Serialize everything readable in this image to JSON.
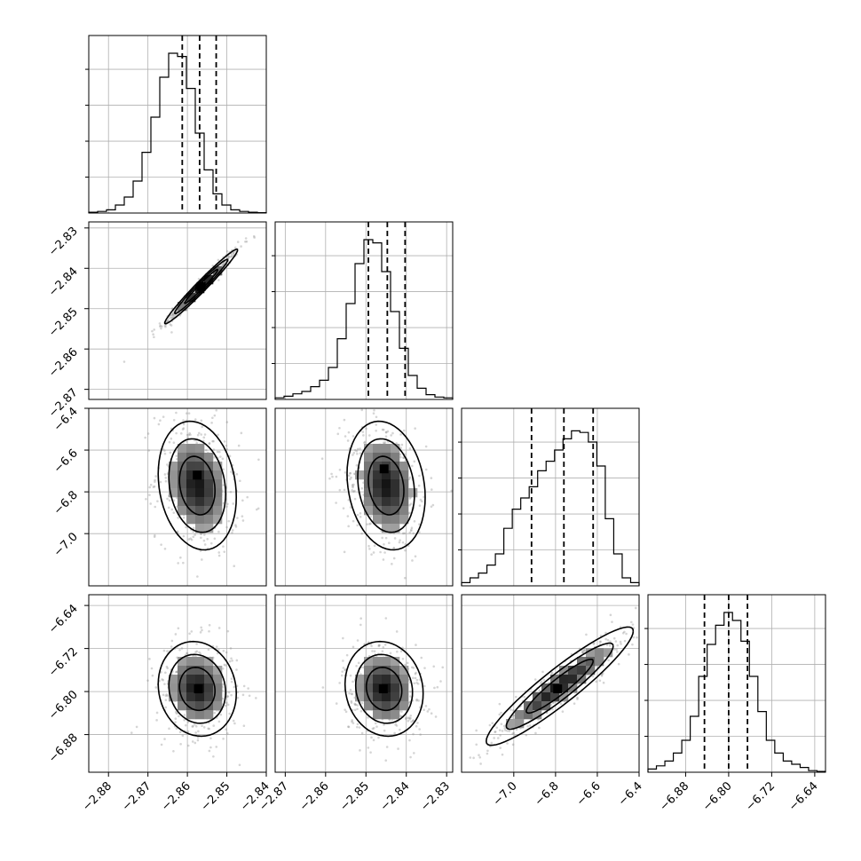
{
  "chart_data": {
    "type": "corner",
    "grid": true,
    "parameters": [
      {
        "range": [
          -2.885,
          -2.84
        ],
        "ticks": [
          -2.88,
          -2.87,
          -2.86,
          -2.85,
          -2.84
        ],
        "tick_labels": [
          "−2.88",
          "−2.87",
          "−2.86",
          "−2.85",
          "−2.84"
        ],
        "quantiles": [
          -2.8613,
          -2.8569,
          -2.8527
        ]
      },
      {
        "range": [
          -2.8725,
          -2.8285
        ],
        "ticks": [
          -2.87,
          -2.86,
          -2.85,
          -2.84,
          -2.83
        ],
        "tick_labels": [
          "−2.87",
          "−2.86",
          "−2.85",
          "−2.84",
          "−2.83"
        ],
        "quantiles": [
          -2.8494,
          -2.8447,
          -2.8403
        ]
      },
      {
        "range": [
          -7.25,
          -6.4
        ],
        "ticks": [
          -7.0,
          -6.8,
          -6.6,
          -6.4
        ],
        "tick_labels": [
          "−7.0",
          "−6.8",
          "−6.6",
          "−6.4"
        ],
        "quantiles": [
          -6.915,
          -6.76,
          -6.62
        ]
      },
      {
        "range": [
          -6.95,
          -6.62
        ],
        "ticks": [
          -6.88,
          -6.8,
          -6.72,
          -6.64
        ],
        "tick_labels": [
          "−6.88",
          "−6.80",
          "−6.72",
          "−6.64"
        ],
        "quantiles": [
          -6.845,
          -6.8,
          -6.765
        ]
      }
    ],
    "histograms": [
      [
        0.005,
        0.01,
        0.02,
        0.05,
        0.1,
        0.2,
        0.38,
        0.6,
        0.85,
        1.0,
        0.98,
        0.78,
        0.5,
        0.27,
        0.12,
        0.05,
        0.02,
        0.01,
        0.005,
        0.002
      ],
      [
        0.01,
        0.02,
        0.035,
        0.05,
        0.08,
        0.12,
        0.2,
        0.38,
        0.6,
        0.85,
        1.0,
        0.98,
        0.8,
        0.55,
        0.32,
        0.15,
        0.07,
        0.03,
        0.015,
        0.01
      ],
      [
        0.02,
        0.05,
        0.08,
        0.13,
        0.2,
        0.36,
        0.48,
        0.55,
        0.62,
        0.72,
        0.78,
        0.85,
        0.92,
        0.97,
        0.96,
        0.9,
        0.75,
        0.42,
        0.2,
        0.05,
        0.02
      ],
      [
        0.02,
        0.04,
        0.07,
        0.12,
        0.2,
        0.35,
        0.6,
        0.8,
        0.92,
        1.0,
        0.95,
        0.82,
        0.6,
        0.38,
        0.2,
        0.12,
        0.07,
        0.05,
        0.03,
        0.01,
        0.005
      ]
    ],
    "pairs": [
      {
        "row": 1,
        "col": 0,
        "mean": [
          -2.8565,
          -2.8445
        ],
        "sd": [
          0.0042,
          0.0042
        ],
        "corr": 0.98,
        "peak": [
          -2.8565,
          -2.8445
        ]
      },
      {
        "row": 2,
        "col": 0,
        "mean": [
          -2.8575,
          -6.77
        ],
        "sd": [
          0.0045,
          0.14
        ],
        "corr": -0.18,
        "peak": [
          -2.8575,
          -6.72
        ]
      },
      {
        "row": 2,
        "col": 1,
        "mean": [
          -2.845,
          -6.77
        ],
        "sd": [
          0.0044,
          0.14
        ],
        "corr": -0.18,
        "peak": [
          -2.8455,
          -6.69
        ]
      },
      {
        "row": 3,
        "col": 0,
        "mean": [
          -2.8575,
          -6.795
        ],
        "sd": [
          0.0045,
          0.04
        ],
        "corr": -0.1,
        "peak": [
          -2.8572,
          -6.795
        ]
      },
      {
        "row": 3,
        "col": 1,
        "mean": [
          -2.8455,
          -6.795
        ],
        "sd": [
          0.0044,
          0.04
        ],
        "corr": -0.1,
        "peak": [
          -2.8457,
          -6.795
        ]
      },
      {
        "row": 3,
        "col": 2,
        "mean": [
          -6.78,
          -6.79
        ],
        "sd": [
          0.16,
          0.05
        ],
        "corr": 0.93,
        "peak": [
          -6.79,
          -6.795
        ]
      }
    ]
  }
}
